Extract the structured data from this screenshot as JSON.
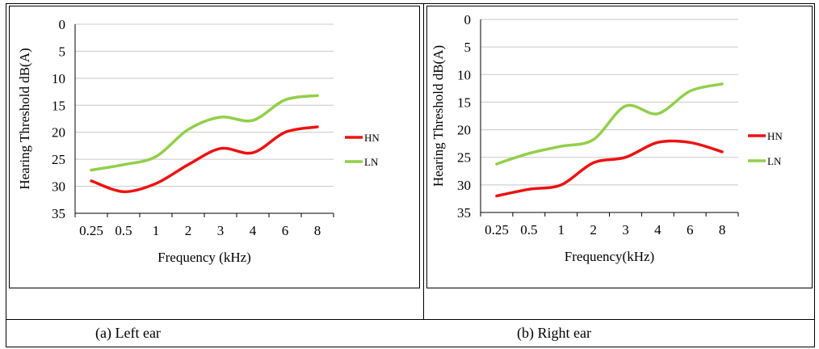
{
  "captions": {
    "left": "(a) Left ear",
    "right": "(b) Right ear"
  },
  "colors": {
    "HN": "#ee1111",
    "LN": "#92cf4a",
    "axis": "#000000",
    "grid": "#c8c8c8"
  },
  "chart_data": [
    {
      "type": "line",
      "categories": [
        "0.25",
        "0.5",
        "1",
        "2",
        "3",
        "4",
        "6",
        "8"
      ],
      "xlabel": "Frequency (kHz)",
      "ylabel": "Hearing Threshold dB(A)",
      "ylim": [
        0,
        35
      ],
      "yticks": [
        "0",
        "5",
        "10",
        "15",
        "20",
        "25",
        "30",
        "35"
      ],
      "y_inverted": true,
      "grid": true,
      "legend": "right",
      "series": [
        {
          "name": "HN",
          "values": [
            29,
            31,
            29.5,
            26,
            23,
            23.8,
            20,
            19
          ]
        },
        {
          "name": "LN",
          "values": [
            27,
            26,
            24.5,
            19.5,
            17.2,
            17.8,
            14,
            13.2
          ]
        }
      ]
    },
    {
      "type": "line",
      "categories": [
        "0.25",
        "0.5",
        "1",
        "2",
        "3",
        "4",
        "6",
        "8"
      ],
      "xlabel": "Frequency(kHz)",
      "ylabel": "Hearing Threshold dB(A)",
      "ylim": [
        0,
        35
      ],
      "yticks": [
        "0",
        "5",
        "10",
        "15",
        "20",
        "25",
        "30",
        "35"
      ],
      "y_inverted": true,
      "grid": true,
      "legend": "right",
      "series": [
        {
          "name": "HN",
          "values": [
            32,
            30.8,
            30,
            26,
            25,
            22.3,
            22.3,
            24
          ]
        },
        {
          "name": "LN",
          "values": [
            26.2,
            24.3,
            23,
            21.8,
            15.7,
            17.1,
            13,
            11.7
          ]
        }
      ]
    }
  ]
}
